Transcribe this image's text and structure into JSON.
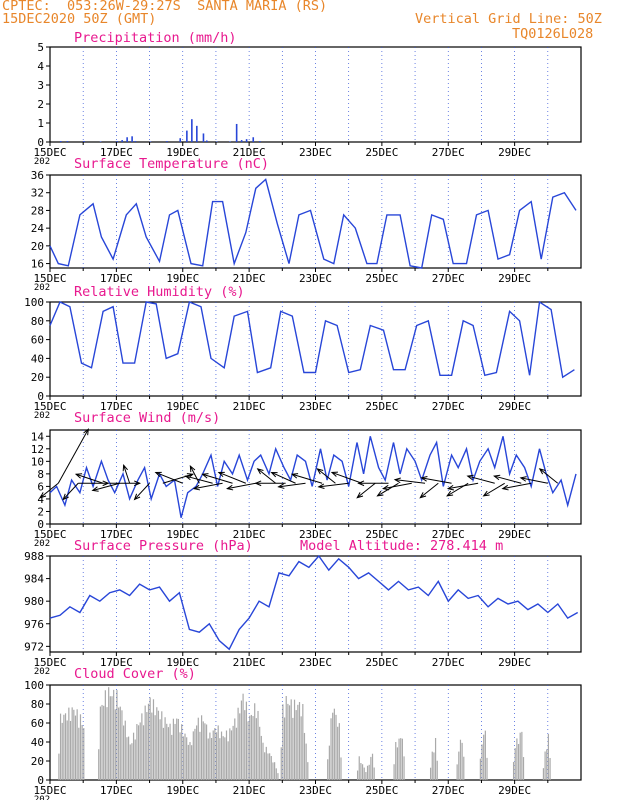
{
  "header": {
    "line1": "CPTEC:  053:26W-29:27S  SANTA MARIA (RS)",
    "line2": "15DEC2020 50Z (GMT)",
    "grid_line": "Vertical Grid Line: 50Z",
    "code": "TQ0126L028"
  },
  "colors": {
    "header": "#e8862a",
    "title": "#e8198f",
    "series": "#2846d8",
    "cloud": "#a9a9a9",
    "arrow": "#000000",
    "grid": "#3050d8"
  },
  "x_labels": [
    "15DEC",
    "17DEC",
    "19DEC",
    "21DEC",
    "23DEC",
    "25DEC",
    "27DEC",
    "29DEC"
  ],
  "x_sub_label": "202",
  "chart_data": [
    {
      "type": "bar",
      "title": "Precipitation (mm/h)",
      "ylim": [
        0,
        5
      ],
      "yticks": [
        0,
        1,
        2,
        3,
        4,
        5
      ],
      "x": [
        0.3,
        0.5,
        1.0,
        1.5,
        2.0,
        2.15,
        2.3,
        2.45,
        2.55,
        3.0,
        3.5,
        3.9,
        4.1,
        4.25,
        4.4,
        4.6,
        4.7,
        5.0,
        5.4,
        5.6,
        5.75,
        5.9,
        6.1,
        6.3
      ],
      "values": [
        0.05,
        0.05,
        0.05,
        0.03,
        0.05,
        0.1,
        0.25,
        0.3,
        0.05,
        0.03,
        0.05,
        0.2,
        0.6,
        1.2,
        0.85,
        0.45,
        0.08,
        0.03,
        0.03,
        0.95,
        0.1,
        0.15,
        0.25,
        0.05
      ]
    },
    {
      "type": "line",
      "title": "Surface Temperature (nC)",
      "ylim": [
        15,
        36
      ],
      "yticks": [
        16,
        20,
        24,
        28,
        32,
        36
      ],
      "series": [
        {
          "x": [
            0,
            0.25,
            0.55,
            0.9,
            1.3,
            1.55,
            1.9,
            2.3,
            2.6,
            2.9,
            3.3,
            3.6,
            3.85,
            4.25,
            4.6,
            4.9,
            5.2,
            5.55,
            5.9,
            6.2,
            6.5,
            6.85,
            7.2,
            7.5,
            7.85,
            8.25,
            8.55,
            8.85,
            9.2,
            9.55,
            9.85,
            10.15,
            10.55,
            10.85,
            11.2,
            11.5,
            11.85,
            12.15,
            12.55,
            12.85,
            13.2,
            13.5,
            13.85,
            14.15,
            14.5,
            14.8,
            15.15,
            15.5,
            15.85
          ],
          "values": [
            20,
            16,
            15.5,
            27,
            29.5,
            22,
            17,
            27,
            29.5,
            22,
            16.5,
            27,
            28,
            16,
            15.5,
            30,
            30,
            16,
            23,
            33,
            35,
            25,
            16,
            27,
            28,
            17,
            16,
            27,
            24,
            16,
            16,
            27,
            27,
            15.5,
            15,
            27,
            26,
            16,
            16,
            27,
            28,
            17,
            18,
            28,
            30,
            17,
            31,
            32,
            28
          ]
        }
      ]
    },
    {
      "type": "line",
      "title": "Relative Humidity (%)",
      "ylim": [
        0,
        100
      ],
      "yticks": [
        0,
        20,
        40,
        60,
        80,
        100
      ],
      "series": [
        {
          "x": [
            0,
            0.3,
            0.6,
            0.95,
            1.25,
            1.6,
            1.9,
            2.2,
            2.55,
            2.9,
            3.2,
            3.5,
            3.85,
            4.2,
            4.55,
            4.85,
            5.25,
            5.55,
            5.95,
            6.25,
            6.65,
            6.95,
            7.3,
            7.65,
            8.0,
            8.3,
            8.65,
            9.0,
            9.35,
            9.65,
            10.05,
            10.35,
            10.7,
            11.05,
            11.4,
            11.75,
            12.1,
            12.45,
            12.75,
            13.1,
            13.45,
            13.85,
            14.15,
            14.45,
            14.75,
            15.1,
            15.45,
            15.8
          ],
          "values": [
            75,
            100,
            95,
            35,
            30,
            90,
            95,
            35,
            35,
            100,
            98,
            40,
            45,
            100,
            95,
            40,
            30,
            85,
            90,
            25,
            30,
            90,
            85,
            25,
            25,
            80,
            75,
            25,
            28,
            75,
            70,
            28,
            28,
            75,
            80,
            22,
            22,
            80,
            75,
            22,
            25,
            90,
            80,
            22,
            100,
            92,
            20,
            28
          ]
        }
      ]
    },
    {
      "type": "line",
      "title": "Surface Wind (m/s)",
      "ylim": [
        0,
        15
      ],
      "yticks": [
        0,
        2,
        4,
        6,
        8,
        10,
        12,
        14
      ],
      "series": [
        {
          "x": [
            0,
            0.2,
            0.45,
            0.65,
            0.9,
            1.1,
            1.3,
            1.55,
            1.75,
            1.95,
            2.2,
            2.4,
            2.65,
            2.85,
            3.05,
            3.3,
            3.5,
            3.75,
            3.95,
            4.15,
            4.4,
            4.6,
            4.85,
            5.05,
            5.25,
            5.5,
            5.7,
            5.95,
            6.15,
            6.35,
            6.6,
            6.8,
            7.05,
            7.25,
            7.45,
            7.7,
            7.9,
            8.15,
            8.35,
            8.55,
            8.8,
            9.0,
            9.25,
            9.45,
            9.65,
            9.9,
            10.1,
            10.35,
            10.55,
            10.75,
            11.0,
            11.2,
            11.45,
            11.65,
            11.85,
            12.1,
            12.3,
            12.55,
            12.75,
            12.95,
            13.2,
            13.4,
            13.65,
            13.85,
            14.05,
            14.3,
            14.5,
            14.75,
            14.95,
            15.15,
            15.4,
            15.6,
            15.85
          ],
          "values": [
            5,
            6,
            3,
            7,
            5,
            9,
            6,
            10,
            7,
            5,
            8,
            4,
            7,
            9,
            4,
            8,
            6,
            7,
            1,
            5,
            6,
            8,
            11,
            6,
            10,
            8,
            11,
            7,
            10,
            11,
            8,
            12,
            9,
            7,
            11,
            10,
            6,
            12,
            7,
            11,
            10,
            6,
            13,
            8,
            14,
            9,
            7,
            13,
            8,
            12,
            10,
            7,
            11,
            13,
            6,
            11,
            9,
            12,
            7,
            10,
            12,
            9,
            14,
            8,
            11,
            9,
            6,
            12,
            8,
            5,
            7,
            3,
            8
          ]
        }
      ],
      "arrows": [
        [
          0.25,
          1,
          3
        ],
        [
          0.25,
          -0.6,
          -0.8
        ],
        [
          0.85,
          1,
          0
        ],
        [
          0.85,
          -0.5,
          -0.9
        ],
        [
          1.6,
          -0.9,
          0.5
        ],
        [
          1.8,
          1,
          0
        ],
        [
          2.1,
          -0.9,
          -0.4
        ],
        [
          2.4,
          -0.2,
          1
        ],
        [
          3.0,
          -0.5,
          -0.9
        ],
        [
          3.4,
          1,
          0.5
        ],
        [
          4.0,
          -0.9,
          0.6
        ],
        [
          4.5,
          -0.3,
          0.95
        ],
        [
          4.9,
          -0.9,
          0.4
        ],
        [
          5.2,
          -0.95,
          -0.3
        ],
        [
          5.5,
          -1,
          0.5
        ],
        [
          5.9,
          -0.9,
          0.6
        ],
        [
          6.2,
          -0.95,
          -0.3
        ],
        [
          6.8,
          -0.6,
          0.8
        ],
        [
          7.1,
          -1,
          0
        ],
        [
          7.4,
          -0.8,
          0.6
        ],
        [
          7.7,
          -0.9,
          -0.2
        ],
        [
          8.2,
          -1,
          0.5
        ],
        [
          8.6,
          -0.6,
          0.8
        ],
        [
          9.0,
          -1,
          -0.2
        ],
        [
          9.4,
          -1,
          0.6
        ],
        [
          9.8,
          -0.6,
          -0.8
        ],
        [
          10.2,
          -1,
          0
        ],
        [
          10.5,
          -0.7,
          -0.7
        ],
        [
          10.9,
          -0.95,
          -0.3
        ],
        [
          11.3,
          -1,
          0.2
        ],
        [
          11.7,
          -0.6,
          -0.8
        ],
        [
          12.1,
          -1,
          0.3
        ],
        [
          12.6,
          -0.7,
          -0.7
        ],
        [
          12.9,
          -1,
          -0.3
        ],
        [
          13.4,
          -0.9,
          0.4
        ],
        [
          13.7,
          -0.7,
          -0.7
        ],
        [
          14.2,
          -0.9,
          0.4
        ],
        [
          14.5,
          -0.95,
          -0.3
        ],
        [
          15.0,
          -0.9,
          0.3
        ],
        [
          15.3,
          -0.6,
          0.8
        ]
      ]
    },
    {
      "type": "line",
      "title": "Surface Pressure (hPa)",
      "annotation": "Model Altitude: 278.414 m",
      "ylim": [
        971,
        988
      ],
      "yticks": [
        972,
        976,
        980,
        984,
        988
      ],
      "series": [
        {
          "x": [
            0,
            0.3,
            0.6,
            0.9,
            1.2,
            1.5,
            1.8,
            2.1,
            2.4,
            2.7,
            3.0,
            3.3,
            3.6,
            3.9,
            4.2,
            4.5,
            4.8,
            5.1,
            5.4,
            5.7,
            6.0,
            6.3,
            6.6,
            6.9,
            7.2,
            7.5,
            7.8,
            8.1,
            8.4,
            8.7,
            9.0,
            9.3,
            9.6,
            9.9,
            10.2,
            10.5,
            10.8,
            11.1,
            11.4,
            11.7,
            12.0,
            12.3,
            12.6,
            12.9,
            13.2,
            13.5,
            13.8,
            14.1,
            14.4,
            14.7,
            15.0,
            15.3,
            15.6,
            15.9
          ],
          "values": [
            977,
            977.5,
            979,
            978,
            981,
            980,
            981.5,
            982,
            981,
            983,
            982,
            982.5,
            980,
            981.5,
            975,
            974.5,
            976,
            973,
            971.5,
            975,
            977,
            980,
            979,
            985,
            984.5,
            987,
            986,
            988,
            985.5,
            987.5,
            986,
            984,
            985,
            983.5,
            982,
            983.5,
            982,
            982.5,
            981,
            983.5,
            980,
            982,
            980.5,
            981,
            979,
            980.5,
            979.5,
            980,
            978.5,
            979.5,
            978,
            979.5,
            977,
            978
          ]
        }
      ]
    },
    {
      "type": "bar",
      "title": "Cloud Cover (%)",
      "ylim": [
        0,
        100
      ],
      "yticks": [
        0,
        20,
        40,
        60,
        80,
        100
      ],
      "profile": [
        [
          0.2,
          0
        ],
        [
          0.3,
          70
        ],
        [
          0.5,
          75
        ],
        [
          0.7,
          80
        ],
        [
          0.9,
          70
        ],
        [
          1.0,
          60
        ],
        [
          1.05,
          0
        ],
        [
          1.4,
          0
        ],
        [
          1.5,
          80
        ],
        [
          1.7,
          100
        ],
        [
          2.0,
          95
        ],
        [
          2.2,
          70
        ],
        [
          2.4,
          40
        ],
        [
          2.6,
          60
        ],
        [
          2.8,
          75
        ],
        [
          3.0,
          90
        ],
        [
          3.2,
          80
        ],
        [
          3.4,
          70
        ],
        [
          3.6,
          60
        ],
        [
          3.8,
          70
        ],
        [
          4.0,
          55
        ],
        [
          4.2,
          40
        ],
        [
          4.4,
          65
        ],
        [
          4.6,
          70
        ],
        [
          4.8,
          50
        ],
        [
          5.0,
          60
        ],
        [
          5.2,
          50
        ],
        [
          5.4,
          55
        ],
        [
          5.6,
          70
        ],
        [
          5.8,
          95
        ],
        [
          6.0,
          70
        ],
        [
          6.2,
          85
        ],
        [
          6.4,
          40
        ],
        [
          6.6,
          30
        ],
        [
          6.8,
          15
        ],
        [
          6.9,
          0
        ],
        [
          7.0,
          80
        ],
        [
          7.1,
          90
        ],
        [
          7.3,
          85
        ],
        [
          7.5,
          85
        ],
        [
          7.6,
          80
        ],
        [
          7.8,
          0
        ],
        [
          8.3,
          0
        ],
        [
          8.4,
          45
        ],
        [
          8.5,
          85
        ],
        [
          8.7,
          60
        ],
        [
          8.8,
          0
        ],
        [
          9.2,
          0
        ],
        [
          9.3,
          25
        ],
        [
          9.5,
          10
        ],
        [
          9.7,
          30
        ],
        [
          9.8,
          0
        ],
        [
          10.3,
          0
        ],
        [
          10.4,
          40
        ],
        [
          10.6,
          50
        ],
        [
          10.7,
          0
        ],
        [
          11.4,
          0
        ],
        [
          11.5,
          30
        ],
        [
          11.6,
          45
        ],
        [
          11.7,
          0
        ],
        [
          12.2,
          0
        ],
        [
          12.3,
          35
        ],
        [
          12.4,
          50
        ],
        [
          12.5,
          0
        ],
        [
          12.9,
          0
        ],
        [
          13.0,
          45
        ],
        [
          13.1,
          55
        ],
        [
          13.2,
          0
        ],
        [
          13.9,
          0
        ],
        [
          14.0,
          40
        ],
        [
          14.2,
          55
        ],
        [
          14.3,
          0
        ],
        [
          14.8,
          0
        ],
        [
          14.9,
          30
        ],
        [
          15.0,
          50
        ],
        [
          15.1,
          0
        ]
      ]
    }
  ]
}
